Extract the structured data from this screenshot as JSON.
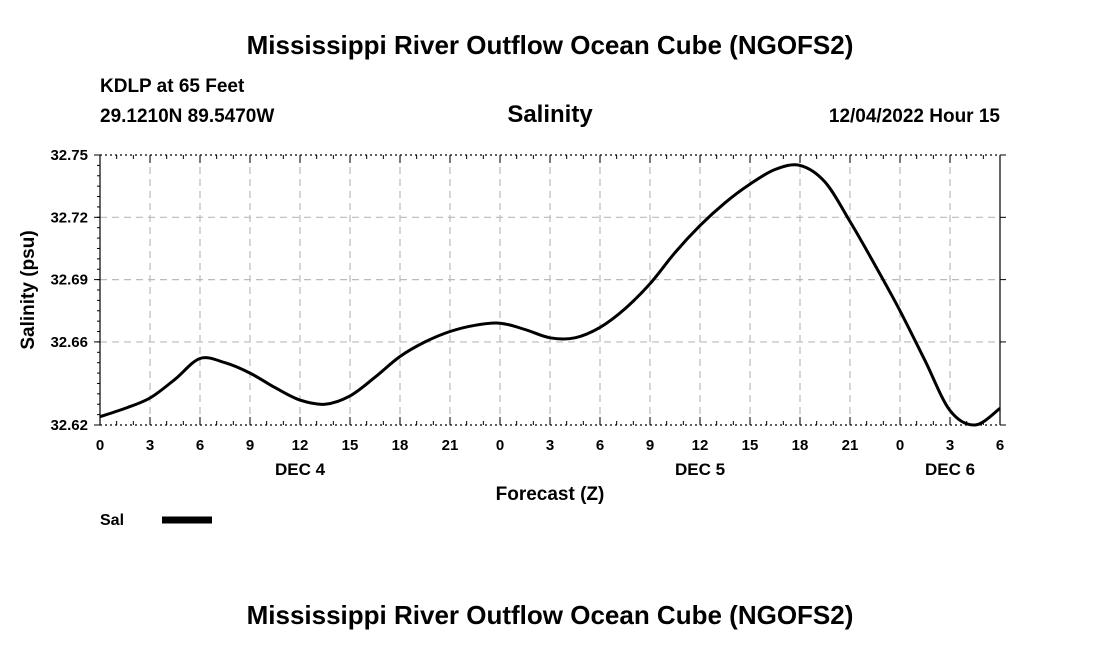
{
  "header": {
    "title": "Mississippi River Outflow Ocean Cube (NGOFS2)",
    "station": "KDLP at 65 Feet",
    "coords": "29.1210N  89.5470W",
    "datetime": "12/04/2022 Hour 15"
  },
  "footer": {
    "title": "Mississippi River Outflow Ocean Cube (NGOFS2)"
  },
  "chart_data": {
    "type": "line",
    "title": "Salinity",
    "xlabel": "Forecast (Z)",
    "ylabel": "Salinity (psu)",
    "ylim": [
      32.62,
      32.75
    ],
    "xlim": [
      0,
      54
    ],
    "yticks": [
      32.62,
      32.66,
      32.69,
      32.72,
      32.75
    ],
    "x_tick_labels": [
      "0",
      "3",
      "6",
      "9",
      "12",
      "15",
      "18",
      "21",
      "0",
      "3",
      "6",
      "9",
      "12",
      "15",
      "18",
      "21",
      "0",
      "3",
      "6"
    ],
    "date_labels": [
      {
        "label": "DEC 4",
        "at_hour": 12
      },
      {
        "label": "DEC 5",
        "at_hour": 36
      },
      {
        "label": "DEC 6",
        "at_hour": 51
      }
    ],
    "grid": true,
    "legend": "bottom-left",
    "series": [
      {
        "name": "Sal",
        "color": "#000000",
        "x": [
          0,
          1.5,
          3,
          4.5,
          6,
          7.5,
          9,
          10.5,
          12,
          13.5,
          15,
          16.5,
          18,
          19.5,
          21,
          22.5,
          24,
          25.5,
          27,
          28.5,
          30,
          31.5,
          33,
          34.5,
          36,
          37.5,
          39,
          40.5,
          42,
          43.5,
          45,
          46.5,
          48,
          49.5,
          51,
          52.5,
          54
        ],
        "values": [
          32.624,
          32.628,
          32.633,
          32.642,
          32.652,
          32.65,
          32.645,
          32.638,
          32.632,
          32.63,
          32.634,
          32.643,
          32.653,
          32.66,
          32.665,
          32.668,
          32.669,
          32.666,
          32.662,
          32.662,
          32.667,
          32.676,
          32.688,
          32.703,
          32.716,
          32.727,
          32.736,
          32.743,
          32.745,
          32.737,
          32.718,
          32.697,
          32.675,
          32.651,
          32.627,
          32.62,
          32.628
        ]
      }
    ]
  }
}
